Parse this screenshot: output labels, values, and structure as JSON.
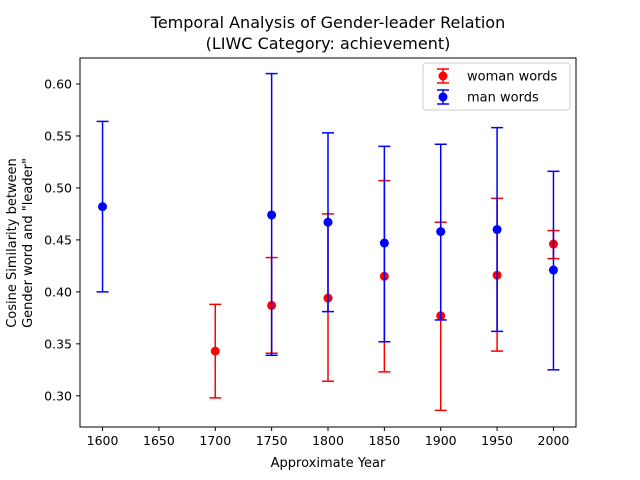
{
  "chart_data": {
    "type": "scatter",
    "title": "Temporal Analysis of Gender-leader Relation",
    "subtitle": "(LIWC Category: achievement)",
    "xlabel": "Approximate Year",
    "ylabel_line1": "Cosine Similarity between",
    "ylabel_line2": "Gender word and \"leader\"",
    "xlim": [
      1580,
      2020
    ],
    "ylim": [
      0.27,
      0.625
    ],
    "xticks": [
      1600,
      1650,
      1700,
      1750,
      1800,
      1850,
      1900,
      1950,
      2000
    ],
    "yticks": [
      0.3,
      0.35,
      0.4,
      0.45,
      0.5,
      0.55,
      0.6
    ],
    "legend_position": "top-right",
    "grid": false,
    "series": [
      {
        "name": "woman words",
        "color": "#ff0000",
        "points": [
          {
            "x": 1700,
            "y": 0.343,
            "lo": 0.298,
            "hi": 0.388
          },
          {
            "x": 1750,
            "y": 0.387,
            "lo": 0.341,
            "hi": 0.433
          },
          {
            "x": 1800,
            "y": 0.394,
            "lo": 0.314,
            "hi": 0.475
          },
          {
            "x": 1850,
            "y": 0.415,
            "lo": 0.323,
            "hi": 0.507
          },
          {
            "x": 1900,
            "y": 0.377,
            "lo": 0.286,
            "hi": 0.467
          },
          {
            "x": 1950,
            "y": 0.416,
            "lo": 0.343,
            "hi": 0.49
          },
          {
            "x": 2000,
            "y": 0.446,
            "lo": 0.432,
            "hi": 0.459
          }
        ]
      },
      {
        "name": "man words",
        "color": "#0000ff",
        "points": [
          {
            "x": 1600,
            "y": 0.482,
            "lo": 0.4,
            "hi": 0.564
          },
          {
            "x": 1750,
            "y": 0.474,
            "lo": 0.339,
            "hi": 0.61
          },
          {
            "x": 1800,
            "y": 0.467,
            "lo": 0.381,
            "hi": 0.553
          },
          {
            "x": 1850,
            "y": 0.447,
            "lo": 0.352,
            "hi": 0.54
          },
          {
            "x": 1900,
            "y": 0.458,
            "lo": 0.373,
            "hi": 0.542
          },
          {
            "x": 1950,
            "y": 0.46,
            "lo": 0.362,
            "hi": 0.558
          },
          {
            "x": 2000,
            "y": 0.421,
            "lo": 0.325,
            "hi": 0.516
          }
        ]
      }
    ]
  }
}
